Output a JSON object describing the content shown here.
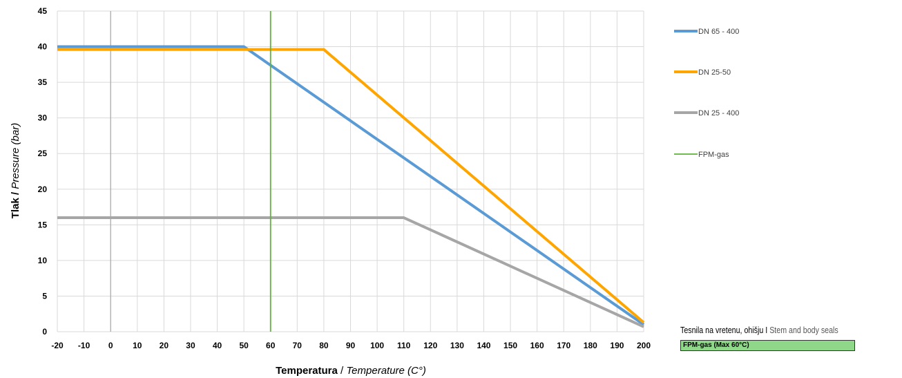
{
  "chart_data": {
    "type": "line",
    "xlabel_bold": "Temperatura",
    "xlabel_sep": " / ",
    "xlabel_italic": "Temperature  (C°)",
    "ylabel_bold": "Tlak",
    "ylabel_sep": " / ",
    "ylabel_italic": "Pressure (bar)",
    "xlim": [
      -20,
      200
    ],
    "ylim": [
      0,
      45
    ],
    "x_ticks": [
      -20,
      -10,
      0,
      10,
      20,
      30,
      40,
      50,
      60,
      70,
      80,
      90,
      100,
      110,
      120,
      130,
      140,
      150,
      160,
      170,
      180,
      190,
      200
    ],
    "y_ticks": [
      0,
      5,
      10,
      15,
      20,
      25,
      30,
      35,
      40,
      45
    ],
    "grid": true,
    "legend_position": "right",
    "series": [
      {
        "name": "DN 65 - 400",
        "color": "#5b9bd5",
        "points": [
          [
            -20,
            40
          ],
          [
            50,
            40
          ],
          [
            200,
            1
          ]
        ]
      },
      {
        "name": "DN 25-50",
        "color": "#ffa500",
        "points": [
          [
            -20,
            39.6
          ],
          [
            80,
            39.6
          ],
          [
            200,
            1.3
          ]
        ]
      },
      {
        "name": "DN 25 - 400",
        "color": "#a6a6a6",
        "points": [
          [
            -20,
            16
          ],
          [
            110,
            16
          ],
          [
            200,
            0.7
          ]
        ]
      },
      {
        "name": "FPM-gas",
        "color": "#5cb338",
        "points": [
          [
            60,
            0
          ],
          [
            60,
            45
          ]
        ]
      }
    ]
  },
  "seals": {
    "caption_main": "Tesnila na vretenu, ohišju I",
    "caption_light": " Stem and body seals",
    "box_label": "FPM-gas (Max 60°C)",
    "box_color": "#8fd88a"
  }
}
